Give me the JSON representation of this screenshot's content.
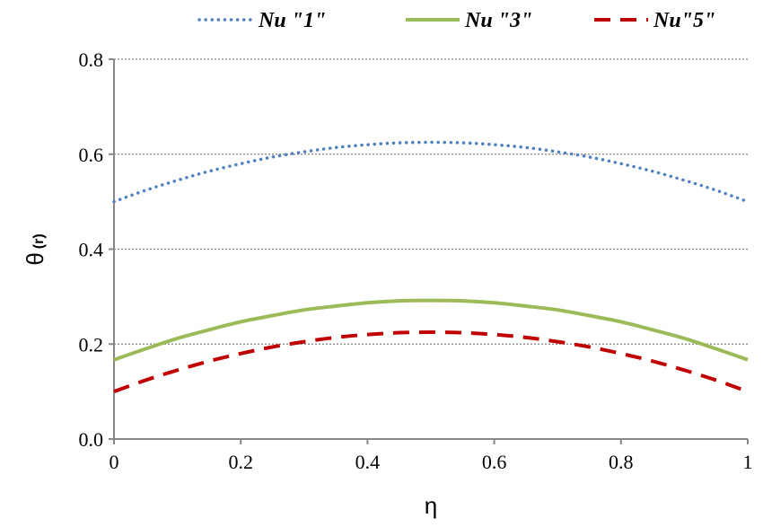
{
  "chart_data": {
    "type": "line",
    "title": "",
    "xlabel": "η",
    "ylabel": "θ",
    "ylabel_sub": "(r)",
    "xlim": [
      0,
      1
    ],
    "ylim": [
      0,
      0.8
    ],
    "x_ticks": [
      0,
      0.2,
      0.4,
      0.6,
      0.8,
      1
    ],
    "x_tick_labels": [
      "0",
      "0.2",
      "0.4",
      "0.6",
      "0.8",
      "1"
    ],
    "y_ticks": [
      0,
      0.2,
      0.4,
      0.6,
      0.8
    ],
    "y_tick_labels": [
      "0.0",
      "0.2",
      "0.4",
      "0.6",
      "0.8"
    ],
    "grid": "horizontal dotted",
    "legend_position": "top",
    "x": [
      0,
      0.05,
      0.1,
      0.15,
      0.2,
      0.25,
      0.3,
      0.35,
      0.4,
      0.45,
      0.5,
      0.55,
      0.6,
      0.65,
      0.7,
      0.75,
      0.8,
      0.85,
      0.9,
      0.95,
      1
    ],
    "series": [
      {
        "name": "Nu \"1\"",
        "color": "#4F81BD",
        "style": "dotted",
        "values": [
          0.5,
          0.524,
          0.545,
          0.564,
          0.58,
          0.594,
          0.605,
          0.614,
          0.62,
          0.624,
          0.625,
          0.624,
          0.62,
          0.614,
          0.605,
          0.594,
          0.58,
          0.564,
          0.545,
          0.524,
          0.5
        ]
      },
      {
        "name": "Nu \"3\"",
        "color": "#9BBB59",
        "style": "solid",
        "values": [
          0.167,
          0.19,
          0.212,
          0.23,
          0.247,
          0.26,
          0.272,
          0.28,
          0.287,
          0.291,
          0.292,
          0.291,
          0.287,
          0.28,
          0.272,
          0.26,
          0.247,
          0.23,
          0.212,
          0.19,
          0.167
        ]
      },
      {
        "name": "Nu\"5\"",
        "color": "#C00000",
        "style": "dashed",
        "values": [
          0.1,
          0.124,
          0.145,
          0.164,
          0.18,
          0.194,
          0.205,
          0.214,
          0.22,
          0.224,
          0.225,
          0.224,
          0.22,
          0.214,
          0.205,
          0.194,
          0.18,
          0.164,
          0.145,
          0.124,
          0.1
        ]
      }
    ]
  }
}
